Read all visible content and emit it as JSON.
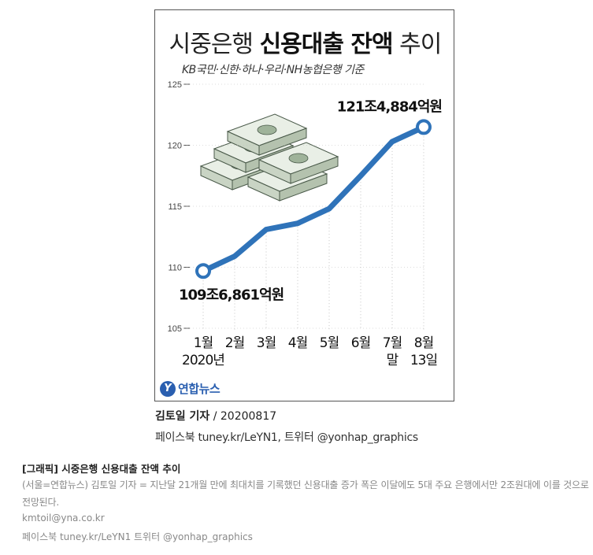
{
  "graphic": {
    "title_regular": "시중은행 ",
    "title_bold": "신용대출 잔액",
    "title_suffix": " 추이",
    "subtitle": "KB국민·신한·하나·우리·NH농협은행 기준",
    "logo_text": "연합뉴스"
  },
  "chart_data": {
    "type": "line",
    "title": "시중은행 신용대출 잔액 추이",
    "subtitle": "KB국민·신한·하나·우리·NH농협은행 기준",
    "categories": [
      "1월",
      "2월",
      "3월",
      "4월",
      "5월",
      "6월",
      "7월 말",
      "8월 13일"
    ],
    "x_tick_lines": [
      [
        "1월",
        "2020년"
      ],
      [
        "2월"
      ],
      [
        "3월"
      ],
      [
        "4월"
      ],
      [
        "5월"
      ],
      [
        "6월"
      ],
      [
        "7월",
        "말"
      ],
      [
        "8월",
        "13일"
      ]
    ],
    "values": [
      109.69,
      110.9,
      113.1,
      113.6,
      114.8,
      117.5,
      120.3,
      121.49
    ],
    "ylim": [
      105,
      125
    ],
    "yticks": [
      105,
      110,
      115,
      120,
      125
    ],
    "grid": false,
    "annotations": [
      {
        "index": 0,
        "text": "109조6,861억원"
      },
      {
        "index": 7,
        "text": "121조4,884억원"
      }
    ],
    "line_color": "#2f73b9"
  },
  "byline": {
    "name": "김토일 기자",
    "date": " / 20200817"
  },
  "social": "페이스북 tuney.kr/LeYN1, 트위터 @yonhap_graphics",
  "caption": {
    "title": "[그래픽] 시중은행 신용대출 잔액 추이",
    "body": "(서울=연합뉴스) 김토일 기자 = 지난달 21개월 만에 최대치를 기록했던 신용대출 증가 폭은 이달에도 5대 주요 은행에서만 2조원대에 이를 것으로 전망된다.",
    "email": "kmtoil@yna.co.kr",
    "social": "페이스북 tuney.kr/LeYN1 트위터 @yonhap_graphics"
  }
}
